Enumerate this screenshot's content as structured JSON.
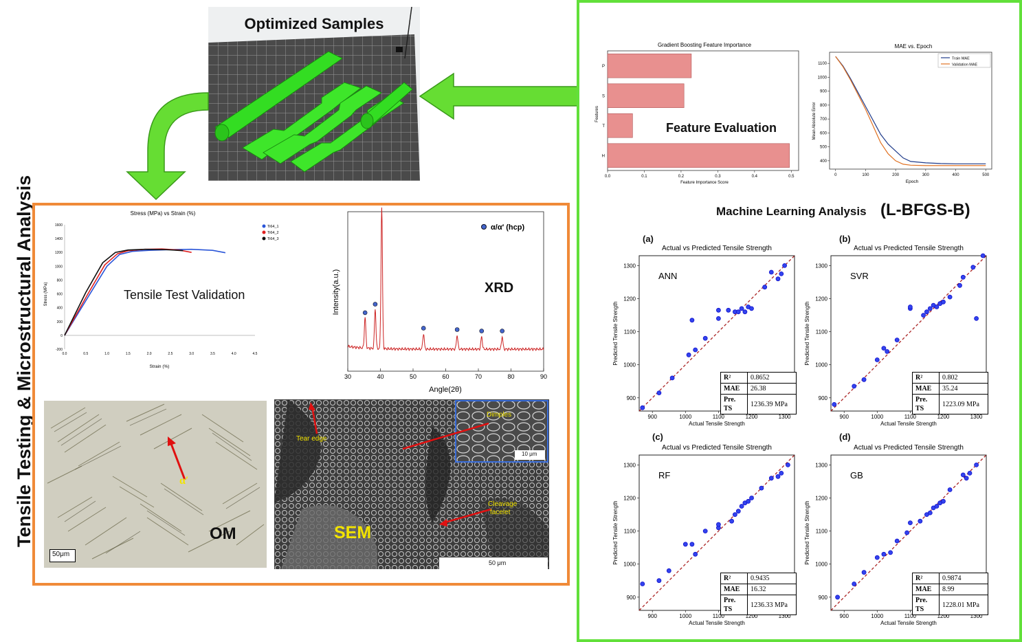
{
  "header": {
    "samples_title": "Optimized Samples"
  },
  "left_panel": {
    "vertical_title": "Tensile Testing & Microstructural Analysis",
    "tensile": {
      "title": "Stress (MPa) vs Strain (%)",
      "overlay_label": "Tensile Test Validation",
      "xlabel": "Strain (%)",
      "ylabel": "Stress (MPa)",
      "legend": [
        "Ti64_1",
        "Ti64_2",
        "Ti64_3"
      ],
      "xticks": [
        "0.0",
        "0.5",
        "1.0",
        "1.5",
        "2.0",
        "2.5",
        "3.0",
        "3.5",
        "4.0",
        "4.5"
      ],
      "yticks": [
        "1600",
        "1400",
        "1200",
        "1000",
        "800",
        "600",
        "400",
        "200",
        "0",
        "-200"
      ]
    },
    "xrd": {
      "overlay_label": "XRD",
      "legend": "α/α′ (hcp)",
      "xlabel": "Angle(2θ)",
      "ylabel": "Intensity(a.u.)",
      "xticks": [
        "30",
        "40",
        "50",
        "60",
        "70",
        "80",
        "90"
      ]
    },
    "om": {
      "label": "OM",
      "phase_label": "α′",
      "scale": "50μm"
    },
    "sem": {
      "label": "SEM",
      "tear_edge": "Tear edge",
      "dimples": "Dimples",
      "cleavage_1": "Cleavage",
      "cleavage_2": "facelet",
      "inset_scale": "10 μm",
      "scale": "50 μm"
    }
  },
  "right_panel": {
    "feature_chart": {
      "title": "Gradient Boosting Feature Importance",
      "overlay_label": "Feature Evaluation",
      "xlabel": "Feature Importance Score",
      "ylabel": "Features",
      "xticks": [
        "0.0",
        "0.1",
        "0.2",
        "0.3",
        "0.4",
        "0.5"
      ]
    },
    "mae_chart": {
      "title": "MAE vs. Epoch",
      "xlabel": "Epoch",
      "ylabel": "Mean Absolute Error",
      "legend": [
        "Train MAE",
        "Validation MAE"
      ],
      "xticks": [
        "0",
        "100",
        "200",
        "300",
        "400",
        "500"
      ],
      "yticks": [
        "1100",
        "1000",
        "900",
        "800",
        "700",
        "600",
        "500",
        "400"
      ]
    },
    "ml_title": "Machine Learning Analysis",
    "ml_method": "(L-BFGS-B)",
    "scatter_title": "Actual vs Predicted Tensile Strength",
    "scatter_xlabel": "Actual Tensile Strength",
    "scatter_ylabel": "Predicted Tensile Strength",
    "scatter_xticks": [
      "900",
      "1000",
      "1100",
      "1200",
      "1300"
    ],
    "scatter_yticks": [
      "1300",
      "1200",
      "1100",
      "1000",
      "900"
    ],
    "metric_labels": {
      "r2": "R²",
      "mae": "MAE",
      "pts": "Pre. TS"
    },
    "models": [
      {
        "tag": "(a)",
        "name": "ANN",
        "r2": "0.8652",
        "mae": "26.38",
        "pts": "1236.39 MPa"
      },
      {
        "tag": "(b)",
        "name": "SVR",
        "r2": "0.802",
        "mae": "35.24",
        "pts": "1223.09 MPa"
      },
      {
        "tag": "(c)",
        "name": "RF",
        "r2": "0.9435",
        "mae": "16.32",
        "pts": "1236.33 MPa"
      },
      {
        "tag": "(d)",
        "name": "GB",
        "r2": "0.9874",
        "mae": "8.99",
        "pts": "1228.01 MPa"
      }
    ]
  },
  "colors": {
    "green_border": "#62e03a",
    "orange_border": "#f08a38",
    "arrow_green": "#66dd33",
    "bar_fill": "#e8908f",
    "scatter_point": "#1111cc",
    "diag_line": "#aa2222"
  },
  "chart_data": [
    {
      "type": "bar",
      "title": "Gradient Boosting Feature Importance",
      "categories": [
        "P",
        "S",
        "T",
        "H"
      ],
      "values": [
        0.228,
        0.208,
        0.068,
        0.495
      ],
      "xlabel": "Feature Importance Score",
      "ylabel": "Features",
      "xlim": [
        0,
        0.52
      ]
    },
    {
      "type": "line",
      "title": "MAE vs. Epoch",
      "xlabel": "Epoch",
      "ylabel": "Mean Absolute Error",
      "xlim": [
        -20,
        520
      ],
      "ylim": [
        340,
        1180
      ],
      "series": [
        {
          "name": "Train MAE",
          "x": [
            0,
            25,
            50,
            75,
            100,
            125,
            150,
            175,
            200,
            225,
            250,
            300,
            350,
            400,
            450,
            500
          ],
          "values": [
            1150,
            1080,
            990,
            890,
            790,
            690,
            590,
            520,
            470,
            420,
            395,
            385,
            380,
            378,
            378,
            378
          ]
        },
        {
          "name": "Validation MAE",
          "x": [
            0,
            25,
            50,
            75,
            100,
            125,
            150,
            175,
            200,
            225,
            250,
            300,
            350,
            400,
            450,
            500
          ],
          "values": [
            1150,
            1075,
            980,
            875,
            770,
            650,
            530,
            450,
            400,
            375,
            368,
            365,
            365,
            365,
            365,
            365
          ]
        }
      ]
    },
    {
      "type": "line",
      "title": "Stress (MPa) vs Strain (%)",
      "xlabel": "Strain (%)",
      "ylabel": "Stress (MPa)",
      "xlim": [
        0,
        4.5
      ],
      "ylim": [
        -200,
        1600
      ],
      "series": [
        {
          "name": "Ti64_1",
          "x": [
            0,
            0.6,
            1.0,
            1.3,
            1.6,
            2.0,
            2.5,
            3.0,
            3.5,
            3.8
          ],
          "values": [
            0,
            600,
            1000,
            1170,
            1215,
            1230,
            1240,
            1245,
            1230,
            1195
          ]
        },
        {
          "name": "Ti64_2",
          "x": [
            0,
            0.55,
            0.95,
            1.25,
            1.5,
            1.9,
            2.3,
            2.7,
            3.0
          ],
          "values": [
            0,
            600,
            1020,
            1180,
            1225,
            1245,
            1250,
            1235,
            1200
          ]
        },
        {
          "name": "Ti64_3",
          "x": [
            0,
            0.5,
            0.9,
            1.2,
            1.5,
            1.9,
            2.4,
            2.8
          ],
          "values": [
            0,
            620,
            1050,
            1200,
            1235,
            1245,
            1240,
            1225
          ]
        }
      ]
    },
    {
      "type": "line",
      "title": "",
      "xlabel": "Angle(2θ)",
      "ylabel": "Intensity(a.u.)",
      "xlim": [
        30,
        90
      ],
      "series": [
        {
          "name": "α/α′ (hcp)",
          "peaks_x": [
            35.3,
            38.4,
            40.4,
            53.2,
            63.5,
            71.0,
            77.3
          ],
          "peaks_rel": [
            0.22,
            0.28,
            1.0,
            0.11,
            0.1,
            0.09,
            0.09
          ]
        }
      ]
    },
    {
      "type": "scatter",
      "title": "Actual vs Predicted Tensile Strength",
      "xlabel": "Actual Tensile Strength",
      "ylabel": "Predicted Tensile Strength",
      "xlim": [
        860,
        1330
      ],
      "ylim": [
        860,
        1330
      ],
      "series": [
        {
          "name": "ANN",
          "x": [
            870,
            920,
            960,
            1010,
            1020,
            1030,
            1060,
            1100,
            1100,
            1130,
            1150,
            1160,
            1170,
            1180,
            1190,
            1200,
            1240,
            1260,
            1280,
            1290,
            1300
          ],
          "values": [
            870,
            915,
            960,
            1030,
            1135,
            1045,
            1080,
            1140,
            1165,
            1165,
            1160,
            1160,
            1170,
            1160,
            1175,
            1170,
            1235,
            1280,
            1260,
            1275,
            1300
          ]
        },
        {
          "name": "SVR",
          "x": [
            870,
            930,
            960,
            1000,
            1020,
            1030,
            1060,
            1100,
            1100,
            1140,
            1150,
            1160,
            1170,
            1180,
            1190,
            1200,
            1220,
            1250,
            1260,
            1290,
            1300,
            1320
          ],
          "values": [
            880,
            935,
            955,
            1015,
            1050,
            1040,
            1075,
            1170,
            1175,
            1150,
            1160,
            1170,
            1180,
            1175,
            1185,
            1190,
            1205,
            1240,
            1265,
            1295,
            1140,
            1330
          ]
        },
        {
          "name": "RF",
          "x": [
            870,
            920,
            950,
            1000,
            1020,
            1030,
            1060,
            1100,
            1100,
            1140,
            1150,
            1160,
            1170,
            1180,
            1190,
            1200,
            1230,
            1260,
            1280,
            1290,
            1310
          ],
          "values": [
            940,
            950,
            980,
            1060,
            1060,
            1030,
            1100,
            1110,
            1120,
            1130,
            1150,
            1160,
            1175,
            1185,
            1190,
            1200,
            1230,
            1260,
            1265,
            1275,
            1300
          ]
        },
        {
          "name": "GB",
          "x": [
            880,
            930,
            960,
            1000,
            1020,
            1040,
            1060,
            1090,
            1100,
            1130,
            1150,
            1160,
            1170,
            1180,
            1190,
            1200,
            1220,
            1260,
            1270,
            1280,
            1300
          ],
          "values": [
            900,
            940,
            975,
            1020,
            1030,
            1035,
            1070,
            1095,
            1125,
            1130,
            1150,
            1155,
            1170,
            1175,
            1185,
            1190,
            1225,
            1270,
            1260,
            1275,
            1300
          ]
        }
      ]
    }
  ]
}
